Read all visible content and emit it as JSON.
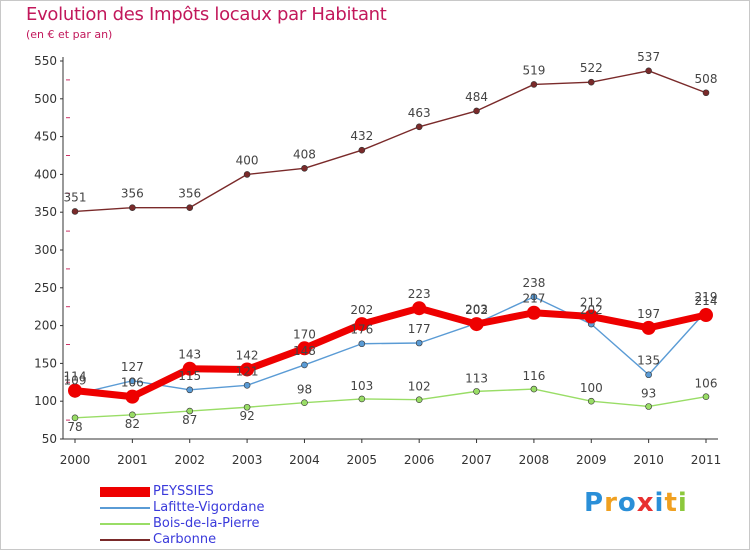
{
  "header": {
    "title": "Evolution des Impôts locaux par Habitant",
    "subtitle": "(en € et par an)"
  },
  "logo": {
    "letters": [
      "P",
      "r",
      "o",
      "x",
      "i",
      "t",
      "i"
    ],
    "colors": [
      "#2a8fd8",
      "#f0a020",
      "#2a8fd8",
      "#e83030",
      "#2a8fd8",
      "#f0a020",
      "#8cc83c"
    ]
  },
  "chart_data": {
    "type": "line",
    "title": "Evolution des Impôts locaux par Habitant",
    "subtitle": "(en € et par an)",
    "x": [
      "2000",
      "2001",
      "2002",
      "2003",
      "2004",
      "2005",
      "2006",
      "2007",
      "2008",
      "2009",
      "2010",
      "2011"
    ],
    "ylim": [
      50,
      550
    ],
    "yticks": [
      50,
      100,
      150,
      200,
      250,
      300,
      350,
      400,
      450,
      500,
      550
    ],
    "grid": false,
    "legend_position": "bottom-left",
    "series": [
      {
        "name": "PEYSSIES",
        "color": "#ee0000",
        "values": [
          114,
          106,
          143,
          142,
          170,
          202,
          223,
          202,
          217,
          212,
          197,
          214
        ],
        "labels": [
          "114",
          "106",
          "143",
          "142",
          "170",
          "202",
          "223",
          "202",
          "217",
          "212",
          "197",
          "214"
        ]
      },
      {
        "name": "Lafitte-Vigordane",
        "color": "#5a9bd5",
        "values": [
          109,
          127,
          115,
          121,
          148,
          176,
          177,
          203,
          238,
          202,
          135,
          219
        ],
        "labels": [
          "109",
          "127",
          "115",
          "121",
          "148",
          "176",
          "177",
          "203",
          "238",
          "202",
          "135",
          "219"
        ]
      },
      {
        "name": "Bois-de-la-Pierre",
        "color": "#99dd66",
        "values": [
          78,
          82,
          87,
          92,
          98,
          103,
          102,
          113,
          116,
          100,
          93,
          106
        ],
        "labels": [
          "78",
          "82",
          "87",
          "92",
          "98",
          "103",
          "102",
          "113",
          "116",
          "100",
          "93",
          "106"
        ]
      },
      {
        "name": "Carbonne",
        "color": "#7a2a2a",
        "values": [
          351,
          356,
          356,
          400,
          408,
          432,
          463,
          484,
          519,
          522,
          537,
          508
        ],
        "labels": [
          "351",
          "356",
          "356",
          "400",
          "408",
          "432",
          "463",
          "484",
          "519",
          "522",
          "537",
          "508"
        ]
      }
    ]
  }
}
